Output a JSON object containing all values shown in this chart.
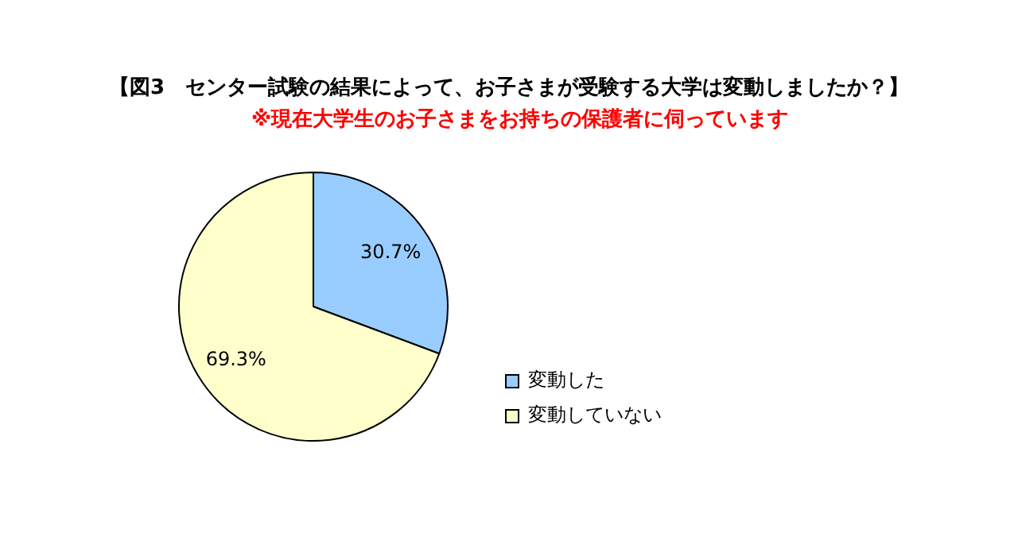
{
  "chart_data": {
    "type": "pie",
    "title": "【図3　センター試験の結果によって、お子さまが受験する大学は変動しましたか？】",
    "subtitle": "※現在大学生のお子さまをお持ちの保護者に伺っています",
    "categories": [
      "変動した",
      "変動していない"
    ],
    "values": [
      30.7,
      69.3
    ],
    "colors": [
      "#99ccff",
      "#ffffcc"
    ],
    "value_labels": [
      "30.7%",
      "69.3%"
    ],
    "legend": "right"
  }
}
